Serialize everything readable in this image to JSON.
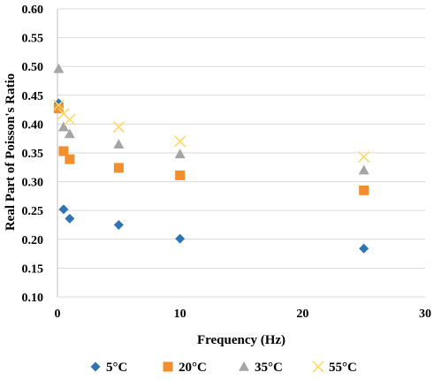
{
  "chart_data": {
    "type": "scatter",
    "title": "",
    "xlabel": "Frequency (Hz)",
    "ylabel": "Real Part of Poisson's Ratio",
    "xlim": [
      0,
      30
    ],
    "ylim": [
      0.1,
      0.6
    ],
    "x_ticks": [
      "0",
      "10",
      "20",
      "30"
    ],
    "y_ticks": [
      "0.10",
      "0.15",
      "0.20",
      "0.25",
      "0.30",
      "0.35",
      "0.40",
      "0.45",
      "0.50",
      "0.55",
      "0.60"
    ],
    "grid": "horizontal",
    "legend_position": "bottom",
    "series": [
      {
        "name": "5°C",
        "marker": "diamond",
        "color": "#2e75b6",
        "x": [
          0.1,
          0.5,
          1,
          5,
          10,
          25
        ],
        "y": [
          0.436,
          0.252,
          0.236,
          0.225,
          0.201,
          0.184
        ]
      },
      {
        "name": "20°C",
        "marker": "square",
        "color": "#f28e2b",
        "x": [
          0.1,
          0.5,
          1,
          5,
          10,
          25
        ],
        "y": [
          0.427,
          0.353,
          0.339,
          0.324,
          0.311,
          0.285
        ]
      },
      {
        "name": "35°C",
        "marker": "triangle",
        "color": "#a5a5a5",
        "x": [
          0.1,
          0.5,
          1,
          5,
          10,
          25
        ],
        "y": [
          0.496,
          0.395,
          0.383,
          0.365,
          0.348,
          0.32
        ]
      },
      {
        "name": "55°C",
        "marker": "x",
        "color": "#ffd966",
        "x": [
          0.1,
          0.5,
          1,
          5,
          10,
          25
        ],
        "y": [
          0.433,
          0.418,
          0.408,
          0.395,
          0.37,
          0.343
        ]
      }
    ]
  }
}
